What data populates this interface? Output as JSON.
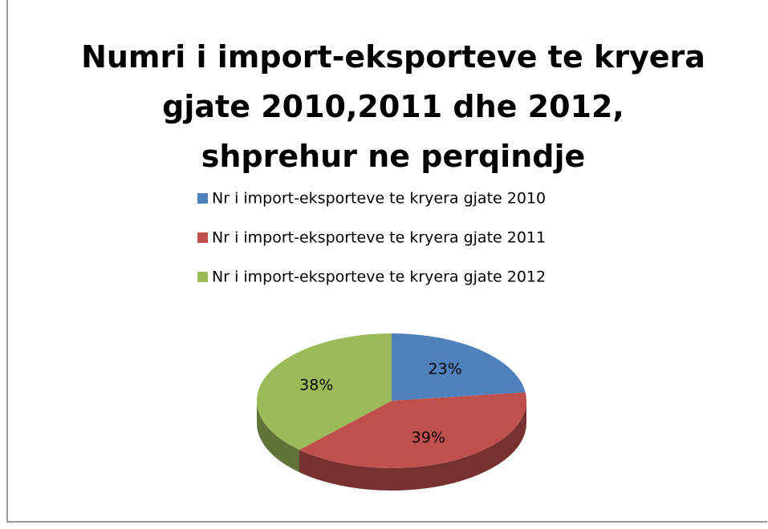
{
  "chart_data": {
    "type": "pie3d",
    "title": "Numri i import-eksporteve te kryera gjate 2010,2011 dhe 2012, shprehur ne perqindje",
    "categories": [
      "Nr i import-eksporteve te kryera gjate 2010",
      "Nr i import-eksporteve te kryera gjate 2011",
      "Nr i import-eksporteve te kryera gjate 2012"
    ],
    "values": [
      23,
      39,
      38
    ],
    "value_labels": [
      "23%",
      "39%",
      "38%"
    ],
    "colors": [
      "#4f81bd",
      "#c0504d",
      "#9bbb59"
    ],
    "legend": "top"
  }
}
